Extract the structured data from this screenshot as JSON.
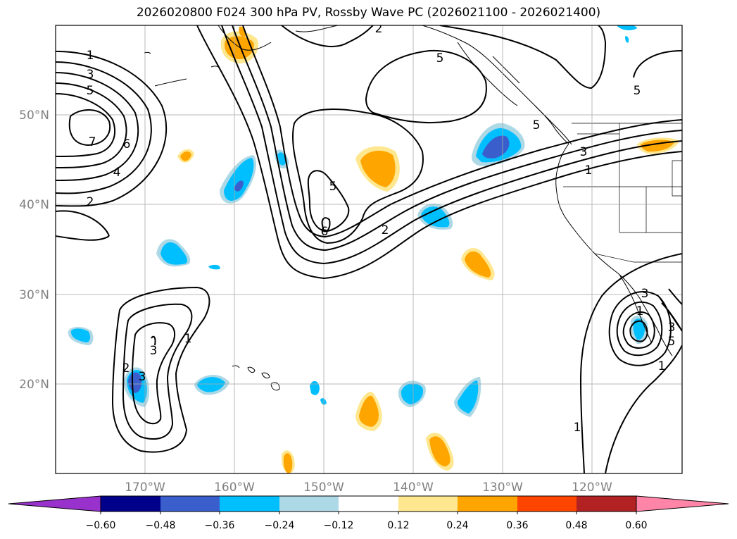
{
  "title": "2026020800 F024 300 hPa PV, Rossby Wave PC (2026021100 - 2026021400)",
  "latitude_labels": [
    "50°N",
    "40°N",
    "30°N",
    "20°N"
  ],
  "longitude_labels": [
    "170°W",
    "160°W",
    "150°W",
    "140°W",
    "130°W",
    "120°W"
  ],
  "colorbar": {
    "ticks": [
      "−0.60",
      "−0.48",
      "−0.36",
      "−0.24",
      "−0.12",
      "0.12",
      "0.24",
      "0.36",
      "0.48",
      "0.60"
    ],
    "colors": [
      "#9932cc",
      "#00008b",
      "#3a5fcd",
      "#00bfff",
      "#add8e6",
      "#ffffff",
      "#ffe78f",
      "#ffa500",
      "#ff4500",
      "#b22222",
      "#ff85a8"
    ]
  },
  "contour_labels": [
    "1",
    "3",
    "5",
    "7",
    "6",
    "4",
    "2",
    "2",
    "5",
    "5",
    "5",
    "6",
    "2",
    "3",
    "1",
    "5",
    "3",
    "1",
    "2",
    "3",
    "3",
    "1",
    "1",
    "1",
    "3",
    "5"
  ],
  "shading_colors": {
    "negative_light": "#add8e6",
    "negative_mid": "#00bfff",
    "negative_strong": "#3a5fcd",
    "positive_light": "#ffe78f",
    "positive_mid": "#ffa500"
  }
}
